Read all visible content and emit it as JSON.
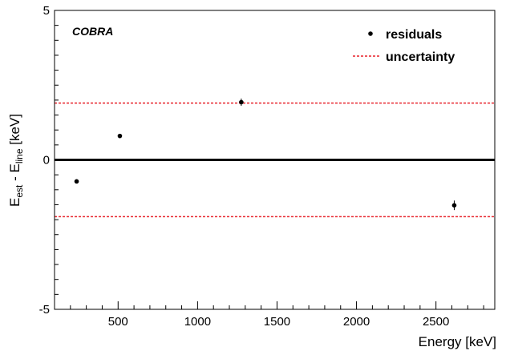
{
  "chart_data": {
    "type": "scatter",
    "title": "",
    "xlabel": "Energy [keV]",
    "ylabel": {
      "main": "E",
      "sub1": "est",
      "mid": " - E",
      "sub2": "line",
      "end": " [keV]"
    },
    "xlim": [
      100,
      2870
    ],
    "ylim": [
      -5,
      5
    ],
    "x_ticks": [
      500,
      1000,
      1500,
      2000,
      2500
    ],
    "y_ticks": [
      -5,
      0,
      5
    ],
    "grid": false,
    "annotation": "COBRA",
    "legend_position": "top-right",
    "legend": [
      {
        "label": "residuals",
        "style": "marker"
      },
      {
        "label": "uncertainty",
        "style": "dashed-line",
        "color": "#e8242c"
      }
    ],
    "series": [
      {
        "name": "residuals",
        "style": "marker",
        "color": "#000000",
        "points": [
          {
            "x": 239,
            "y": -0.72,
            "err": 0.05
          },
          {
            "x": 511,
            "y": 0.8,
            "err": 0.07
          },
          {
            "x": 1275,
            "y": 1.93,
            "err": 0.12
          },
          {
            "x": 2615,
            "y": -1.52,
            "err": 0.16
          }
        ]
      },
      {
        "name": "uncertainty",
        "style": "dashed-line",
        "color": "#e8242c",
        "values": [
          1.9,
          -1.9
        ]
      },
      {
        "name": "reference",
        "style": "solid-line",
        "color": "#000000",
        "values": [
          0
        ]
      }
    ]
  }
}
